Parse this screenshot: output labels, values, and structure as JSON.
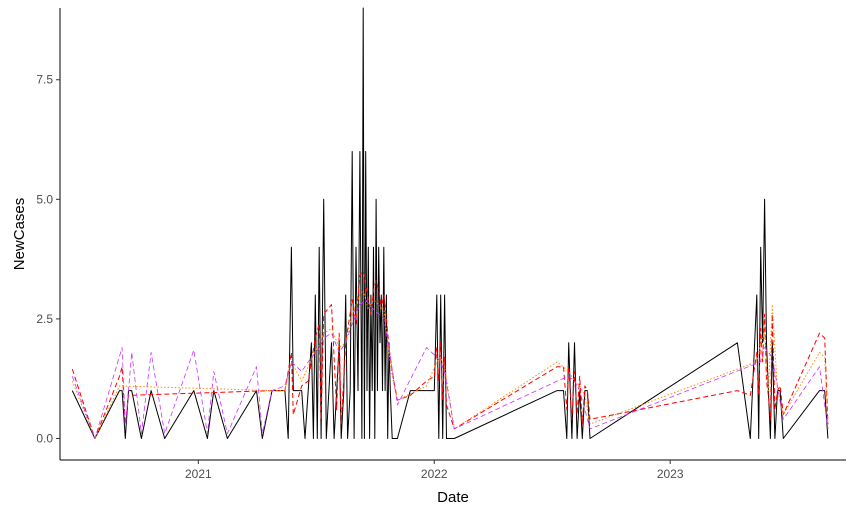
{
  "chart_data": {
    "type": "line",
    "xlabel": "Date",
    "ylabel": "NewCases",
    "xlim": [
      "2020-06-01",
      "2023-09-30"
    ],
    "ylim": [
      -0.45,
      9.0
    ],
    "x_ticks": [
      {
        "date": "2021-01-01",
        "label": "2021"
      },
      {
        "date": "2022-01-01",
        "label": "2022"
      },
      {
        "date": "2023-01-01",
        "label": "2023"
      }
    ],
    "y_ticks": [
      {
        "value": 0.0,
        "label": "0.0"
      },
      {
        "value": 2.5,
        "label": "2.5"
      },
      {
        "value": 5.0,
        "label": "5.0"
      },
      {
        "value": 7.5,
        "label": "7.5"
      }
    ],
    "grid": false,
    "legend": "none",
    "series": [
      {
        "color": "#000000",
        "dash": "solid",
        "width": 1,
        "points": [
          [
            "2020-06-20",
            1
          ],
          [
            "2020-07-25",
            0
          ],
          [
            "2020-09-01",
            1
          ],
          [
            "2020-09-05",
            1
          ],
          [
            "2020-09-10",
            0
          ],
          [
            "2020-09-15",
            1
          ],
          [
            "2020-09-20",
            1
          ],
          [
            "2020-10-05",
            0
          ],
          [
            "2020-10-20",
            1
          ],
          [
            "2020-11-10",
            0
          ],
          [
            "2020-12-25",
            1
          ],
          [
            "2021-01-15",
            0
          ],
          [
            "2021-01-25",
            1
          ],
          [
            "2021-02-15",
            0
          ],
          [
            "2021-04-01",
            1
          ],
          [
            "2021-04-10",
            0
          ],
          [
            "2021-04-25",
            1
          ],
          [
            "2021-05-15",
            1
          ],
          [
            "2021-05-20",
            0
          ],
          [
            "2021-05-25",
            4
          ],
          [
            "2021-05-28",
            1
          ],
          [
            "2021-06-10",
            1
          ],
          [
            "2021-06-15",
            0
          ],
          [
            "2021-06-20",
            1
          ],
          [
            "2021-06-25",
            2
          ],
          [
            "2021-06-28",
            0
          ],
          [
            "2021-07-01",
            3
          ],
          [
            "2021-07-04",
            0
          ],
          [
            "2021-07-07",
            4
          ],
          [
            "2021-07-10",
            0
          ],
          [
            "2021-07-14",
            5
          ],
          [
            "2021-07-18",
            0
          ],
          [
            "2021-07-22",
            1
          ],
          [
            "2021-07-26",
            2
          ],
          [
            "2021-07-30",
            0
          ],
          [
            "2021-08-03",
            1
          ],
          [
            "2021-08-07",
            2
          ],
          [
            "2021-08-10",
            0
          ],
          [
            "2021-08-14",
            1
          ],
          [
            "2021-08-17",
            3
          ],
          [
            "2021-08-20",
            0
          ],
          [
            "2021-08-24",
            1
          ],
          [
            "2021-08-27",
            6
          ],
          [
            "2021-08-30",
            0
          ],
          [
            "2021-09-02",
            4
          ],
          [
            "2021-09-05",
            1
          ],
          [
            "2021-09-08",
            6
          ],
          [
            "2021-09-11",
            0
          ],
          [
            "2021-09-13",
            9
          ],
          [
            "2021-09-15",
            0
          ],
          [
            "2021-09-17",
            6
          ],
          [
            "2021-09-19",
            1
          ],
          [
            "2021-09-21",
            4
          ],
          [
            "2021-09-23",
            0
          ],
          [
            "2021-09-25",
            3
          ],
          [
            "2021-09-27",
            1
          ],
          [
            "2021-09-29",
            4
          ],
          [
            "2021-10-01",
            0
          ],
          [
            "2021-10-03",
            5
          ],
          [
            "2021-10-05",
            1
          ],
          [
            "2021-10-07",
            4
          ],
          [
            "2021-10-09",
            2
          ],
          [
            "2021-10-11",
            3
          ],
          [
            "2021-10-13",
            1
          ],
          [
            "2021-10-15",
            4
          ],
          [
            "2021-10-17",
            1
          ],
          [
            "2021-10-19",
            3
          ],
          [
            "2021-10-21",
            0
          ],
          [
            "2021-10-23",
            2
          ],
          [
            "2021-10-25",
            1
          ],
          [
            "2021-10-28",
            0
          ],
          [
            "2021-11-05",
            0
          ],
          [
            "2021-11-25",
            1
          ],
          [
            "2021-12-20",
            1
          ],
          [
            "2022-01-01",
            1
          ],
          [
            "2022-01-05",
            3
          ],
          [
            "2022-01-08",
            0
          ],
          [
            "2022-01-11",
            3
          ],
          [
            "2022-01-14",
            0
          ],
          [
            "2022-01-17",
            3
          ],
          [
            "2022-01-20",
            0
          ],
          [
            "2022-02-01",
            0
          ],
          [
            "2022-07-10",
            1
          ],
          [
            "2022-07-20",
            1
          ],
          [
            "2022-07-25",
            0
          ],
          [
            "2022-07-28",
            2
          ],
          [
            "2022-08-02",
            0
          ],
          [
            "2022-08-06",
            2
          ],
          [
            "2022-08-10",
            0
          ],
          [
            "2022-08-14",
            1
          ],
          [
            "2022-08-18",
            0
          ],
          [
            "2022-08-22",
            1
          ],
          [
            "2022-08-26",
            1
          ],
          [
            "2022-08-30",
            0
          ],
          [
            "2023-04-15",
            2
          ],
          [
            "2023-05-05",
            0
          ],
          [
            "2023-05-15",
            3
          ],
          [
            "2023-05-18",
            0
          ],
          [
            "2023-05-21",
            4
          ],
          [
            "2023-05-24",
            2
          ],
          [
            "2023-05-27",
            5
          ],
          [
            "2023-05-30",
            2
          ],
          [
            "2023-06-02",
            1
          ],
          [
            "2023-06-05",
            0
          ],
          [
            "2023-06-08",
            2
          ],
          [
            "2023-06-12",
            0
          ],
          [
            "2023-06-16",
            1
          ],
          [
            "2023-06-20",
            1
          ],
          [
            "2023-06-25",
            0
          ],
          [
            "2023-08-20",
            1
          ],
          [
            "2023-08-28",
            1
          ],
          [
            "2023-09-02",
            0
          ]
        ]
      },
      {
        "color": "#ff0000",
        "dash": "dashed",
        "width": 1,
        "points": [
          [
            "2020-06-20",
            1.45
          ],
          [
            "2020-07-25",
            0
          ],
          [
            "2020-09-01",
            1.3
          ],
          [
            "2020-09-05",
            1.5
          ],
          [
            "2020-09-10",
            0.3
          ],
          [
            "2020-09-15",
            0.9
          ],
          [
            "2021-04-25",
            1
          ],
          [
            "2021-05-15",
            1
          ],
          [
            "2021-05-25",
            1.8
          ],
          [
            "2021-05-28",
            0.5
          ],
          [
            "2021-06-10",
            1.1
          ],
          [
            "2021-06-20",
            1.2
          ],
          [
            "2021-07-01",
            2.1
          ],
          [
            "2021-07-07",
            2.4
          ],
          [
            "2021-07-10",
            0.4
          ],
          [
            "2021-07-14",
            2.6
          ],
          [
            "2021-07-26",
            2.8
          ],
          [
            "2021-08-03",
            0.6
          ],
          [
            "2021-08-07",
            2.2
          ],
          [
            "2021-08-10",
            0.3
          ],
          [
            "2021-08-17",
            2.0
          ],
          [
            "2021-08-27",
            2.9
          ],
          [
            "2021-09-02",
            2.4
          ],
          [
            "2021-09-08",
            3.4
          ],
          [
            "2021-09-13",
            3.5
          ],
          [
            "2021-09-17",
            3.2
          ],
          [
            "2021-09-21",
            2.9
          ],
          [
            "2021-09-25",
            2.6
          ],
          [
            "2021-09-29",
            3.1
          ],
          [
            "2021-10-03",
            3.3
          ],
          [
            "2021-10-07",
            3.1
          ],
          [
            "2021-10-11",
            2.7
          ],
          [
            "2021-10-15",
            3.0
          ],
          [
            "2021-10-19",
            2.5
          ],
          [
            "2021-10-23",
            1.9
          ],
          [
            "2021-10-28",
            1.4
          ],
          [
            "2021-11-05",
            0.8
          ],
          [
            "2021-11-25",
            0.9
          ],
          [
            "2021-12-20",
            1.2
          ],
          [
            "2022-01-01",
            1.3
          ],
          [
            "2022-01-05",
            1.9
          ],
          [
            "2022-01-08",
            1.2
          ],
          [
            "2022-01-11",
            2.0
          ],
          [
            "2022-01-14",
            0.8
          ],
          [
            "2022-01-17",
            1.7
          ],
          [
            "2022-01-20",
            0.7
          ],
          [
            "2022-02-01",
            0.2
          ],
          [
            "2022-07-10",
            1.5
          ],
          [
            "2022-07-20",
            1.5
          ],
          [
            "2022-07-25",
            0.6
          ],
          [
            "2022-07-28",
            1.5
          ],
          [
            "2022-08-02",
            0.4
          ],
          [
            "2022-08-06",
            1.4
          ],
          [
            "2022-08-10",
            0.5
          ],
          [
            "2022-08-14",
            1.3
          ],
          [
            "2022-08-18",
            0.3
          ],
          [
            "2022-08-22",
            1.1
          ],
          [
            "2022-08-26",
            1.0
          ],
          [
            "2022-08-30",
            0.4
          ],
          [
            "2023-04-15",
            1.0
          ],
          [
            "2023-05-05",
            0.9
          ],
          [
            "2023-05-15",
            1.8
          ],
          [
            "2023-05-18",
            0.9
          ],
          [
            "2023-05-21",
            2.3
          ],
          [
            "2023-05-24",
            1.6
          ],
          [
            "2023-05-27",
            2.6
          ],
          [
            "2023-05-30",
            1.2
          ],
          [
            "2023-06-02",
            0.9
          ],
          [
            "2023-06-05",
            0.4
          ],
          [
            "2023-06-08",
            2.6
          ],
          [
            "2023-06-12",
            0.6
          ],
          [
            "2023-06-16",
            1.0
          ],
          [
            "2023-06-20",
            1.1
          ],
          [
            "2023-06-25",
            0.5
          ],
          [
            "2023-08-20",
            2.2
          ],
          [
            "2023-08-28",
            2.1
          ],
          [
            "2023-09-02",
            0.3
          ]
        ]
      },
      {
        "color": "#ff8c00",
        "dash": "dotted",
        "width": 1,
        "points": [
          [
            "2020-06-20",
            1.2
          ],
          [
            "2020-07-25",
            0
          ],
          [
            "2020-09-01",
            1.1
          ],
          [
            "2021-04-25",
            1
          ],
          [
            "2021-05-15",
            1
          ],
          [
            "2021-05-25",
            1.6
          ],
          [
            "2021-06-10",
            1.2
          ],
          [
            "2021-06-20",
            1.5
          ],
          [
            "2021-07-07",
            2.0
          ],
          [
            "2021-07-14",
            2.2
          ],
          [
            "2021-07-26",
            2.3
          ],
          [
            "2021-08-07",
            1.9
          ],
          [
            "2021-08-17",
            2.0
          ],
          [
            "2021-08-27",
            2.6
          ],
          [
            "2021-09-08",
            3.0
          ],
          [
            "2021-09-13",
            3.1
          ],
          [
            "2021-09-21",
            2.7
          ],
          [
            "2021-09-29",
            2.9
          ],
          [
            "2021-10-07",
            2.8
          ],
          [
            "2021-10-15",
            2.7
          ],
          [
            "2021-10-23",
            1.8
          ],
          [
            "2021-10-28",
            1.3
          ],
          [
            "2021-11-05",
            0.8
          ],
          [
            "2021-12-20",
            1.1
          ],
          [
            "2022-01-05",
            1.6
          ],
          [
            "2022-01-11",
            1.7
          ],
          [
            "2022-01-17",
            1.5
          ],
          [
            "2022-02-01",
            0.2
          ],
          [
            "2022-07-10",
            1.6
          ],
          [
            "2022-07-28",
            1.4
          ],
          [
            "2022-08-06",
            1.2
          ],
          [
            "2022-08-14",
            1.1
          ],
          [
            "2022-08-22",
            0.9
          ],
          [
            "2022-08-30",
            0.3
          ],
          [
            "2023-05-15",
            1.6
          ],
          [
            "2023-05-21",
            2.0
          ],
          [
            "2023-05-27",
            2.2
          ],
          [
            "2023-06-02",
            1.0
          ],
          [
            "2023-06-08",
            2.8
          ],
          [
            "2023-06-16",
            1.0
          ],
          [
            "2023-06-25",
            0.5
          ],
          [
            "2023-08-20",
            1.8
          ],
          [
            "2023-08-28",
            1.7
          ],
          [
            "2023-09-02",
            0.2
          ]
        ]
      },
      {
        "color": "#cc33ff",
        "dash": "dashed",
        "width": 0.8,
        "points": [
          [
            "2020-06-20",
            1.3
          ],
          [
            "2020-07-25",
            0
          ],
          [
            "2020-09-05",
            1.9
          ],
          [
            "2020-09-10",
            0.2
          ],
          [
            "2020-09-20",
            1.8
          ],
          [
            "2020-10-05",
            0.1
          ],
          [
            "2020-10-20",
            1.8
          ],
          [
            "2020-11-10",
            0.1
          ],
          [
            "2020-12-25",
            1.85
          ],
          [
            "2021-01-15",
            0.1
          ],
          [
            "2021-01-25",
            1.4
          ],
          [
            "2021-02-15",
            0.1
          ],
          [
            "2021-04-01",
            1.5
          ],
          [
            "2021-04-10",
            0.1
          ],
          [
            "2021-04-25",
            1.0
          ],
          [
            "2021-05-15",
            1.1
          ],
          [
            "2021-05-25",
            1.6
          ],
          [
            "2021-06-10",
            1.4
          ],
          [
            "2021-06-20",
            1.6
          ],
          [
            "2021-07-07",
            1.9
          ],
          [
            "2021-07-14",
            2.1
          ],
          [
            "2021-07-26",
            2.2
          ],
          [
            "2021-08-07",
            1.8
          ],
          [
            "2021-08-17",
            2.0
          ],
          [
            "2021-08-27",
            2.4
          ],
          [
            "2021-09-08",
            2.8
          ],
          [
            "2021-09-17",
            2.9
          ],
          [
            "2021-09-29",
            2.7
          ],
          [
            "2021-10-07",
            2.6
          ],
          [
            "2021-10-15",
            2.5
          ],
          [
            "2021-10-23",
            1.9
          ],
          [
            "2021-11-05",
            0.7
          ],
          [
            "2021-12-20",
            1.9
          ],
          [
            "2022-01-05",
            1.7
          ],
          [
            "2022-01-11",
            1.6
          ],
          [
            "2022-01-17",
            1.4
          ],
          [
            "2022-02-01",
            0.2
          ],
          [
            "2022-07-10",
            1.2
          ],
          [
            "2022-07-28",
            1.3
          ],
          [
            "2022-08-06",
            1.2
          ],
          [
            "2022-08-14",
            1.0
          ],
          [
            "2022-08-30",
            0.2
          ],
          [
            "2023-05-21",
            1.6
          ],
          [
            "2023-05-27",
            1.9
          ],
          [
            "2023-06-08",
            1.7
          ],
          [
            "2023-06-25",
            0.4
          ],
          [
            "2023-08-20",
            1.5
          ],
          [
            "2023-09-02",
            0.2
          ]
        ]
      }
    ]
  }
}
